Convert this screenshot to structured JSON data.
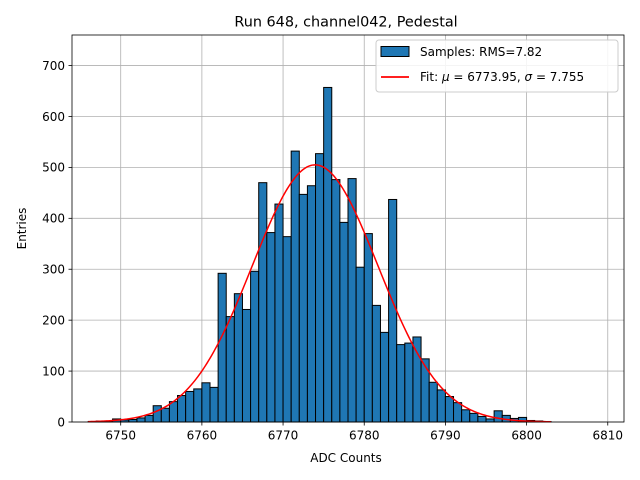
{
  "chart_data": {
    "type": "bar",
    "title": "Run 648, channel042, Pedestal",
    "xlabel": "ADC Counts",
    "ylabel": "Entries",
    "xlim": [
      6744,
      6812
    ],
    "ylim": [
      0,
      760
    ],
    "xticks": [
      6750,
      6760,
      6770,
      6780,
      6790,
      6800,
      6810
    ],
    "yticks": [
      0,
      100,
      200,
      300,
      400,
      500,
      600,
      700
    ],
    "grid": true,
    "legend_position": "top-right",
    "bin_width": 1,
    "histogram": {
      "name": "Samples: RMS=7.82",
      "color": "#1f77b4",
      "edgecolor": "#000000",
      "bins": [
        {
          "x": 6746,
          "count": 1
        },
        {
          "x": 6747,
          "count": 2
        },
        {
          "x": 6748,
          "count": 2
        },
        {
          "x": 6749,
          "count": 6
        },
        {
          "x": 6750,
          "count": 4
        },
        {
          "x": 6751,
          "count": 5
        },
        {
          "x": 6752,
          "count": 8
        },
        {
          "x": 6753,
          "count": 13
        },
        {
          "x": 6754,
          "count": 32
        },
        {
          "x": 6755,
          "count": 27
        },
        {
          "x": 6756,
          "count": 40
        },
        {
          "x": 6757,
          "count": 52
        },
        {
          "x": 6758,
          "count": 60
        },
        {
          "x": 6759,
          "count": 65
        },
        {
          "x": 6760,
          "count": 77
        },
        {
          "x": 6761,
          "count": 68
        },
        {
          "x": 6762,
          "count": 292
        },
        {
          "x": 6763,
          "count": 207
        },
        {
          "x": 6764,
          "count": 252
        },
        {
          "x": 6765,
          "count": 221
        },
        {
          "x": 6766,
          "count": 296
        },
        {
          "x": 6767,
          "count": 470
        },
        {
          "x": 6768,
          "count": 372
        },
        {
          "x": 6769,
          "count": 428
        },
        {
          "x": 6770,
          "count": 364
        },
        {
          "x": 6771,
          "count": 532
        },
        {
          "x": 6772,
          "count": 447
        },
        {
          "x": 6773,
          "count": 464
        },
        {
          "x": 6774,
          "count": 527
        },
        {
          "x": 6775,
          "count": 657
        },
        {
          "x": 6776,
          "count": 476
        },
        {
          "x": 6777,
          "count": 392
        },
        {
          "x": 6778,
          "count": 478
        },
        {
          "x": 6779,
          "count": 304
        },
        {
          "x": 6780,
          "count": 370
        },
        {
          "x": 6781,
          "count": 229
        },
        {
          "x": 6782,
          "count": 176
        },
        {
          "x": 6783,
          "count": 437
        },
        {
          "x": 6784,
          "count": 152
        },
        {
          "x": 6785,
          "count": 155
        },
        {
          "x": 6786,
          "count": 167
        },
        {
          "x": 6787,
          "count": 124
        },
        {
          "x": 6788,
          "count": 78
        },
        {
          "x": 6789,
          "count": 63
        },
        {
          "x": 6790,
          "count": 50
        },
        {
          "x": 6791,
          "count": 38
        },
        {
          "x": 6792,
          "count": 24
        },
        {
          "x": 6793,
          "count": 17
        },
        {
          "x": 6794,
          "count": 11
        },
        {
          "x": 6795,
          "count": 6
        },
        {
          "x": 6796,
          "count": 22
        },
        {
          "x": 6797,
          "count": 13
        },
        {
          "x": 6798,
          "count": 7
        },
        {
          "x": 6799,
          "count": 9
        },
        {
          "x": 6800,
          "count": 3
        },
        {
          "x": 6801,
          "count": 2
        },
        {
          "x": 6802,
          "count": 1
        }
      ]
    },
    "fit": {
      "name": "Fit: μ = 6773.95, σ = 7.755",
      "name_parts": [
        "Fit: ",
        "μ",
        " = 6773.95, ",
        "σ",
        " = 7.755"
      ],
      "color": "#ff0000",
      "mu": 6773.95,
      "sigma": 7.755,
      "amplitude": 505,
      "x_range": [
        6746,
        6803
      ]
    }
  }
}
